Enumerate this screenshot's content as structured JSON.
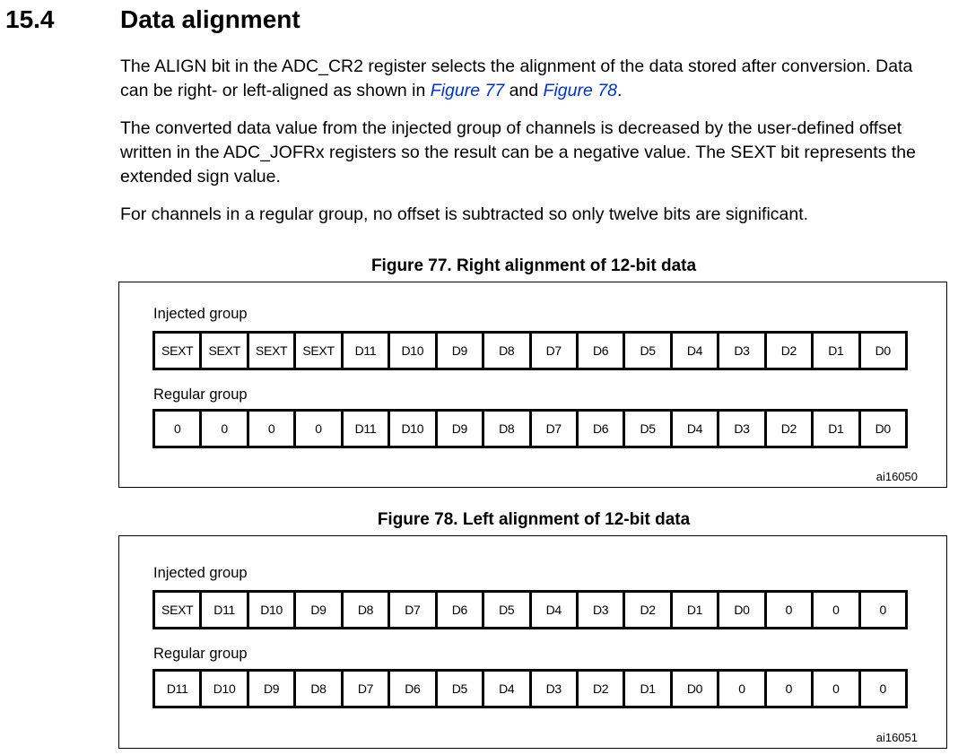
{
  "section": {
    "number": "15.4",
    "title": "Data alignment"
  },
  "paragraphs": {
    "p1": {
      "before": "The ALIGN bit in the ADC_CR2 register selects the alignment of the data stored after conversion. Data can be right- or left-aligned as shown in ",
      "link1": "Figure 77",
      "middle": " and ",
      "link2": "Figure 78",
      "after": "."
    },
    "p2": "The converted data value from the injected group of channels is decreased by the user-defined offset written in the ADC_JOFRx registers so the result can be a negative value. The SEXT bit represents the extended sign value.",
    "p3": "For channels in a regular group, no offset is subtracted so only twelve bits are significant."
  },
  "figures": [
    {
      "caption": "Figure 77. Right alignment of 12-bit data",
      "injected_label": "Injected group",
      "injected_bits": [
        "SEXT",
        "SEXT",
        "SEXT",
        "SEXT",
        "D11",
        "D10",
        "D9",
        "D8",
        "D7",
        "D6",
        "D5",
        "D4",
        "D3",
        "D2",
        "D1",
        "D0"
      ],
      "regular_label": "Regular group",
      "regular_bits": [
        "0",
        "0",
        "0",
        "0",
        "D11",
        "D10",
        "D9",
        "D8",
        "D7",
        "D6",
        "D5",
        "D4",
        "D3",
        "D2",
        "D1",
        "D0"
      ],
      "id": "ai16050"
    },
    {
      "caption": "Figure 78. Left alignment of 12-bit data",
      "injected_label": "Injected group",
      "injected_bits": [
        "SEXT",
        "D11",
        "D10",
        "D9",
        "D8",
        "D7",
        "D6",
        "D5",
        "D4",
        "D3",
        "D2",
        "D1",
        "D0",
        "0",
        "0",
        "0"
      ],
      "regular_label": "Regular group",
      "regular_bits": [
        "D11",
        "D10",
        "D9",
        "D8",
        "D7",
        "D6",
        "D5",
        "D4",
        "D3",
        "D2",
        "D1",
        "D0",
        "0",
        "0",
        "0",
        "0"
      ],
      "id": "ai16051"
    }
  ]
}
